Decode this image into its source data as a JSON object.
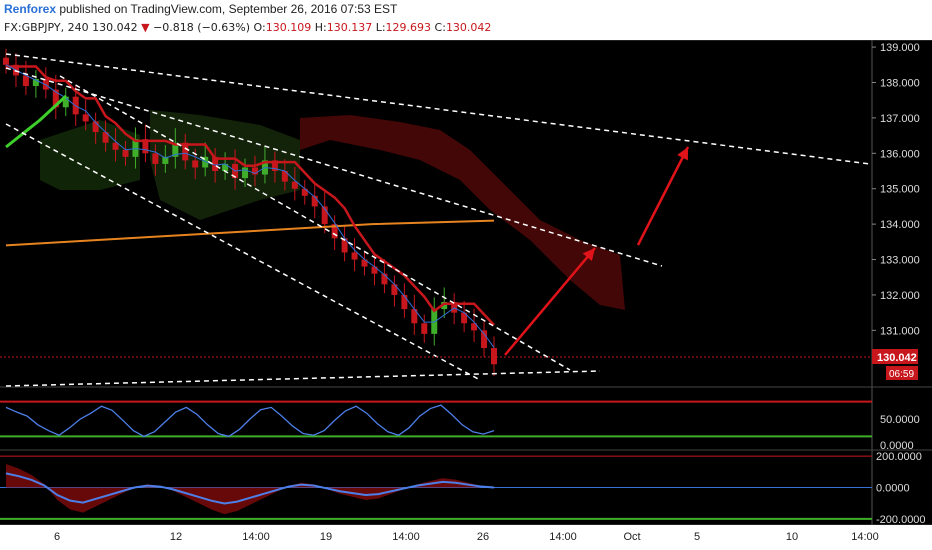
{
  "header": {
    "author": "Renforex",
    "published_text": "published on TradingView.com, September 26, 2016 07:53 EST",
    "symbol": "FX:GBPJPY, 240",
    "last": "130.042",
    "change_arrow": "▼",
    "change": "−0.818 (−0.63%)",
    "open_label": "O:",
    "open": "130.109",
    "high_label": "H:",
    "high": "130.137",
    "low_label": "L:",
    "low": "129.693",
    "close_label": "C:",
    "close": "130.042"
  },
  "colors": {
    "background": "#000000",
    "up_candle": "#3fae2a",
    "down_candle": "#c8161d",
    "baseline": "#e8841f",
    "kijun": "#c8161d",
    "tenkan": "#2f6fd6",
    "cloud_bear": "#5a0a0a",
    "cloud_bull": "#1f4a10",
    "forecast_arrow": "#e0131a",
    "oscillator": "#4d7fe8",
    "green_level": "#3fae2a",
    "red_level": "#c8161d"
  },
  "chart_data": [
    {
      "type": "candlestick",
      "title": "FX:GBPJPY, 240",
      "y_ticks": [
        "139.000",
        "138.000",
        "137.000",
        "136.000",
        "135.000",
        "134.000",
        "133.000",
        "132.000",
        "131.000"
      ],
      "x_ticks": [
        "6",
        "12",
        "14:00",
        "19",
        "14:00",
        "26",
        "14:00",
        "Oct",
        "5",
        "10",
        "14:00"
      ],
      "ylim": [
        129.4,
        139.2
      ],
      "last_price": "130.042",
      "countdown": "06:59",
      "close_series": [
        138.5,
        138.2,
        137.9,
        138.1,
        137.8,
        137.3,
        137.6,
        137.1,
        136.9,
        136.6,
        136.3,
        136.1,
        135.9,
        136.4,
        136.0,
        135.7,
        135.9,
        136.3,
        135.8,
        135.6,
        135.9,
        135.5,
        135.7,
        135.3,
        135.6,
        135.4,
        135.8,
        135.5,
        135.2,
        135.0,
        134.8,
        134.5,
        134.0,
        133.6,
        133.2,
        133.0,
        132.8,
        132.6,
        132.3,
        132.0,
        131.6,
        131.2,
        130.9,
        131.6,
        131.8,
        131.5,
        131.2,
        131.0,
        130.5,
        130.042
      ],
      "baseline_series": [
        133.4,
        133.6,
        133.8,
        134.0,
        134.1
      ],
      "forecast_arrows": [
        {
          "from": [
            130.0
          ],
          "to": [
            133.1
          ]
        },
        {
          "from": [
            133.4
          ],
          "to": [
            136.1
          ]
        }
      ]
    },
    {
      "type": "line",
      "title": "",
      "y_ticks": [
        "50.0000",
        "0.0000"
      ],
      "levels": [
        80,
        20
      ],
      "values": [
        70,
        62,
        55,
        40,
        30,
        22,
        35,
        50,
        60,
        72,
        65,
        48,
        30,
        20,
        28,
        45,
        62,
        70,
        58,
        40,
        25,
        20,
        32,
        50,
        66,
        70,
        55,
        38,
        25,
        22,
        30,
        48,
        64,
        72,
        60,
        42,
        28,
        22,
        35,
        55,
        68,
        74,
        58,
        40,
        28,
        24,
        30
      ]
    },
    {
      "type": "area",
      "title": "",
      "y_ticks": [
        "200.0000",
        "0.0000",
        "-200.0000"
      ],
      "values": [
        150,
        120,
        80,
        20,
        -80,
        -140,
        -160,
        -120,
        -80,
        -40,
        0,
        20,
        10,
        -20,
        -60,
        -100,
        -140,
        -170,
        -150,
        -110,
        -70,
        -30,
        10,
        30,
        20,
        -10,
        -40,
        -60,
        -80,
        -70,
        -40,
        -10,
        20,
        40,
        60,
        50,
        30,
        10,
        0
      ]
    }
  ]
}
